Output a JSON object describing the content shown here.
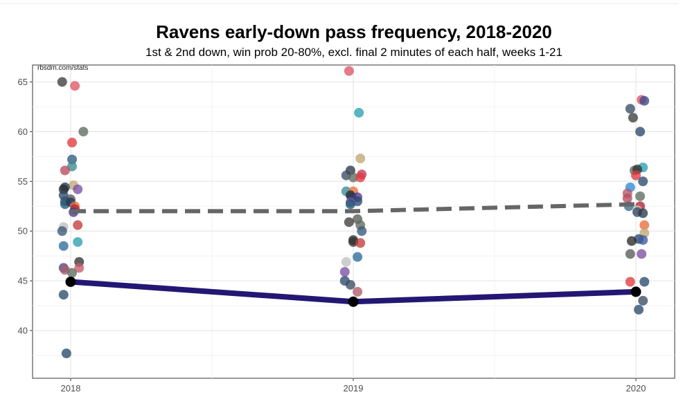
{
  "chart_data": {
    "type": "scatter",
    "title": "Ravens early-down pass frequency, 2018-2020",
    "subtitle": "1st & 2nd down, win prob 20-80%, excl. final 2 minutes of each half, weeks 1-21",
    "caption": "rbsdm.com/stats",
    "x_categories": [
      "2018",
      "2019",
      "2020"
    ],
    "xlabel": "",
    "ylabel": "",
    "ylim": [
      35.2,
      66.7
    ],
    "y_ticks": [
      40,
      45,
      50,
      55,
      60,
      65
    ],
    "grid": true,
    "legend": "none",
    "series": [
      {
        "kind": "league-teams",
        "points": [
          {
            "x": "2018",
            "jitter": -0.03,
            "y": 65.0,
            "color": "#3d3d3d"
          },
          {
            "x": "2018",
            "jitter": 0.015,
            "y": 64.6,
            "color": "#e05567"
          },
          {
            "x": "2018",
            "jitter": 0.045,
            "y": 60.0,
            "color": "#5e6b62"
          },
          {
            "x": "2018",
            "jitter": 0.005,
            "y": 58.9,
            "color": "#e03a3e"
          },
          {
            "x": "2018",
            "jitter": 0.005,
            "y": 57.2,
            "color": "#2f5b7d"
          },
          {
            "x": "2018",
            "jitter": 0.005,
            "y": 56.5,
            "color": "#3a8a8f"
          },
          {
            "x": "2018",
            "jitter": -0.02,
            "y": 56.1,
            "color": "#b84a5e"
          },
          {
            "x": "2018",
            "jitter": 0.01,
            "y": 54.6,
            "color": "#c2a872"
          },
          {
            "x": "2018",
            "jitter": -0.02,
            "y": 54.4,
            "color": "#1f3b57"
          },
          {
            "x": "2018",
            "jitter": -0.025,
            "y": 54.2,
            "color": "#2a2a2a"
          },
          {
            "x": "2018",
            "jitter": 0.025,
            "y": 54.2,
            "color": "#7b4fa3"
          },
          {
            "x": "2018",
            "jitter": -0.025,
            "y": 53.6,
            "color": "#2c4a6b"
          },
          {
            "x": "2018",
            "jitter": 0.0,
            "y": 53.2,
            "color": "#5a5a5a"
          },
          {
            "x": "2018",
            "jitter": -0.02,
            "y": 53.0,
            "color": "#3a4d63"
          },
          {
            "x": "2018",
            "jitter": -0.02,
            "y": 52.7,
            "color": "#225a7a"
          },
          {
            "x": "2018",
            "jitter": 0.0,
            "y": 52.9,
            "color": "#1f3b57"
          },
          {
            "x": "2018",
            "jitter": 0.015,
            "y": 52.5,
            "color": "#e86f3a"
          },
          {
            "x": "2018",
            "jitter": 0.015,
            "y": 52.2,
            "color": "#b22234"
          },
          {
            "x": "2018",
            "jitter": 0.01,
            "y": 51.9,
            "color": "#4a3a8a"
          },
          {
            "x": "2018",
            "jitter": 0.025,
            "y": 50.6,
            "color": "#c33b3b"
          },
          {
            "x": "2018",
            "jitter": -0.025,
            "y": 50.4,
            "color": "#c0c0c0"
          },
          {
            "x": "2018",
            "jitter": -0.03,
            "y": 50.0,
            "color": "#3a5a7a"
          },
          {
            "x": "2018",
            "jitter": 0.025,
            "y": 48.9,
            "color": "#2aa0b0"
          },
          {
            "x": "2018",
            "jitter": -0.025,
            "y": 48.5,
            "color": "#2c6c9c"
          },
          {
            "x": "2018",
            "jitter": 0.03,
            "y": 46.9,
            "color": "#333333"
          },
          {
            "x": "2018",
            "jitter": -0.025,
            "y": 46.3,
            "color": "#3a4a8a"
          },
          {
            "x": "2018",
            "jitter": -0.02,
            "y": 46.1,
            "color": "#b05a6a"
          },
          {
            "x": "2018",
            "jitter": 0.03,
            "y": 46.3,
            "color": "#c85a6a"
          },
          {
            "x": "2018",
            "jitter": 0.005,
            "y": 45.8,
            "color": "#5f6b5f"
          },
          {
            "x": "2018",
            "jitter": -0.025,
            "y": 43.6,
            "color": "#2c4a6b"
          },
          {
            "x": "2018",
            "jitter": -0.015,
            "y": 37.7,
            "color": "#2a4a6a"
          },
          {
            "x": "2019",
            "jitter": -0.015,
            "y": 66.1,
            "color": "#e05567"
          },
          {
            "x": "2019",
            "jitter": 0.02,
            "y": 61.9,
            "color": "#2aa0b0"
          },
          {
            "x": "2019",
            "jitter": 0.025,
            "y": 57.3,
            "color": "#c2a872"
          },
          {
            "x": "2019",
            "jitter": -0.01,
            "y": 56.1,
            "color": "#2a3a4a"
          },
          {
            "x": "2019",
            "jitter": -0.025,
            "y": 55.6,
            "color": "#3a4d63"
          },
          {
            "x": "2019",
            "jitter": 0.0,
            "y": 55.4,
            "color": "#5e6b62"
          },
          {
            "x": "2019",
            "jitter": 0.03,
            "y": 55.7,
            "color": "#c33b5e"
          },
          {
            "x": "2019",
            "jitter": 0.025,
            "y": 55.4,
            "color": "#e03a3e"
          },
          {
            "x": "2019",
            "jitter": -0.025,
            "y": 54.0,
            "color": "#3a8a9a"
          },
          {
            "x": "2019",
            "jitter": 0.0,
            "y": 54.0,
            "color": "#e86f3a"
          },
          {
            "x": "2019",
            "jitter": -0.01,
            "y": 53.6,
            "color": "#2a2a2a"
          },
          {
            "x": "2019",
            "jitter": -0.005,
            "y": 53.4,
            "color": "#1f3b57"
          },
          {
            "x": "2019",
            "jitter": 0.015,
            "y": 53.4,
            "color": "#4a3a8a"
          },
          {
            "x": "2019",
            "jitter": 0.015,
            "y": 53.0,
            "color": "#2c4a6b"
          },
          {
            "x": "2019",
            "jitter": -0.01,
            "y": 52.9,
            "color": "#7b4fa3"
          },
          {
            "x": "2019",
            "jitter": -0.01,
            "y": 52.7,
            "color": "#225a7a"
          },
          {
            "x": "2019",
            "jitter": 0.015,
            "y": 51.2,
            "color": "#5a5a5a"
          },
          {
            "x": "2019",
            "jitter": -0.015,
            "y": 50.9,
            "color": "#3d3d3d"
          },
          {
            "x": "2019",
            "jitter": 0.025,
            "y": 50.6,
            "color": "#5f6b5f"
          },
          {
            "x": "2019",
            "jitter": 0.03,
            "y": 50.0,
            "color": "#3a5a7a"
          },
          {
            "x": "2019",
            "jitter": 0.0,
            "y": 49.1,
            "color": "#2a2a2a"
          },
          {
            "x": "2019",
            "jitter": 0.0,
            "y": 48.9,
            "color": "#333333"
          },
          {
            "x": "2019",
            "jitter": 0.025,
            "y": 48.8,
            "color": "#c33b3b"
          },
          {
            "x": "2019",
            "jitter": 0.015,
            "y": 47.4,
            "color": "#2c6c9c"
          },
          {
            "x": "2019",
            "jitter": -0.025,
            "y": 46.9,
            "color": "#c0c0c0"
          },
          {
            "x": "2019",
            "jitter": -0.03,
            "y": 45.9,
            "color": "#7b4fa3"
          },
          {
            "x": "2019",
            "jitter": -0.03,
            "y": 45.0,
            "color": "#2c4a6b"
          },
          {
            "x": "2019",
            "jitter": -0.01,
            "y": 44.6,
            "color": "#3a4d63"
          },
          {
            "x": "2019",
            "jitter": 0.015,
            "y": 43.9,
            "color": "#b05a6a"
          },
          {
            "x": "2020",
            "jitter": 0.02,
            "y": 63.2,
            "color": "#e05567"
          },
          {
            "x": "2020",
            "jitter": 0.03,
            "y": 63.1,
            "color": "#3a4a8a"
          },
          {
            "x": "2020",
            "jitter": -0.02,
            "y": 62.3,
            "color": "#3a4d63"
          },
          {
            "x": "2020",
            "jitter": -0.01,
            "y": 61.4,
            "color": "#3d3d3d"
          },
          {
            "x": "2020",
            "jitter": 0.015,
            "y": 60.0,
            "color": "#2a4a6a"
          },
          {
            "x": "2020",
            "jitter": 0.025,
            "y": 56.4,
            "color": "#2aa0b0"
          },
          {
            "x": "2020",
            "jitter": -0.005,
            "y": 56.1,
            "color": "#5e6b62"
          },
          {
            "x": "2020",
            "jitter": 0.005,
            "y": 56.2,
            "color": "#333333"
          },
          {
            "x": "2020",
            "jitter": 0.0,
            "y": 55.6,
            "color": "#e03a3e"
          },
          {
            "x": "2020",
            "jitter": 0.025,
            "y": 55.0,
            "color": "#2c4a6b"
          },
          {
            "x": "2020",
            "jitter": -0.02,
            "y": 54.4,
            "color": "#2c8cd6"
          },
          {
            "x": "2020",
            "jitter": -0.03,
            "y": 53.8,
            "color": "#b05a6a"
          },
          {
            "x": "2020",
            "jitter": -0.03,
            "y": 53.3,
            "color": "#b84a5e"
          },
          {
            "x": "2020",
            "jitter": 0.015,
            "y": 53.5,
            "color": "#5f6b5f"
          },
          {
            "x": "2020",
            "jitter": -0.025,
            "y": 52.5,
            "color": "#3a6a8a"
          },
          {
            "x": "2020",
            "jitter": 0.015,
            "y": 52.5,
            "color": "#b22234"
          },
          {
            "x": "2020",
            "jitter": 0.005,
            "y": 52.1,
            "color": "#c0c0c0"
          },
          {
            "x": "2020",
            "jitter": 0.005,
            "y": 51.9,
            "color": "#3a4d63"
          },
          {
            "x": "2020",
            "jitter": 0.025,
            "y": 51.8,
            "color": "#2a3a4a"
          },
          {
            "x": "2020",
            "jitter": 0.03,
            "y": 50.6,
            "color": "#e86f3a"
          },
          {
            "x": "2020",
            "jitter": 0.03,
            "y": 49.8,
            "color": "#c2a872"
          },
          {
            "x": "2020",
            "jitter": 0.01,
            "y": 49.2,
            "color": "#2a4a6a"
          },
          {
            "x": "2020",
            "jitter": -0.015,
            "y": 49.0,
            "color": "#2a2a2a"
          },
          {
            "x": "2020",
            "jitter": 0.025,
            "y": 49.1,
            "color": "#3a5aa0"
          },
          {
            "x": "2020",
            "jitter": -0.02,
            "y": 47.7,
            "color": "#5a5a5a"
          },
          {
            "x": "2020",
            "jitter": 0.02,
            "y": 47.7,
            "color": "#7b4fa3"
          },
          {
            "x": "2020",
            "jitter": -0.02,
            "y": 44.9,
            "color": "#e03a3e"
          },
          {
            "x": "2020",
            "jitter": 0.03,
            "y": 44.9,
            "color": "#2c4a6b"
          },
          {
            "x": "2020",
            "jitter": 0.025,
            "y": 43.0,
            "color": "#3a4d63"
          },
          {
            "x": "2020",
            "jitter": 0.01,
            "y": 42.1,
            "color": "#2a4a6a"
          }
        ]
      },
      {
        "kind": "league-average",
        "style": "dashed",
        "color": "#666666",
        "points": [
          {
            "x": "2018",
            "y": 52.0
          },
          {
            "x": "2019",
            "y": 52.0
          },
          {
            "x": "2020",
            "y": 52.7
          }
        ]
      },
      {
        "kind": "ravens",
        "style": "solid",
        "color": "#241773",
        "marker_color": "#000000",
        "points": [
          {
            "x": "2018",
            "y": 44.9
          },
          {
            "x": "2019",
            "y": 42.9
          },
          {
            "x": "2020",
            "y": 43.9
          }
        ]
      }
    ]
  }
}
